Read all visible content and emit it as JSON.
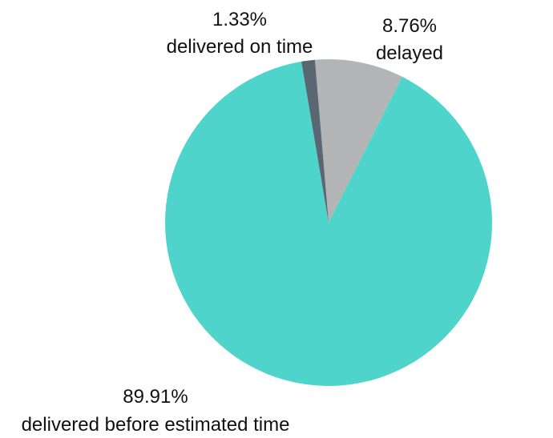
{
  "chart_data": {
    "type": "pie",
    "title": "",
    "start_angle_deg": -4.8,
    "direction": "clockwise",
    "slices": [
      {
        "label": "delayed",
        "value": 8.76,
        "percent_label": "8.76%",
        "color": "#b2b4b5"
      },
      {
        "label": "delivered before estimated time",
        "value": 89.91,
        "percent_label": "89.91%",
        "color": "#4fd4cc"
      },
      {
        "label": "delivered on time",
        "value": 1.33,
        "percent_label": "1.33%",
        "color": "#5a6672"
      }
    ],
    "legend": "none"
  }
}
